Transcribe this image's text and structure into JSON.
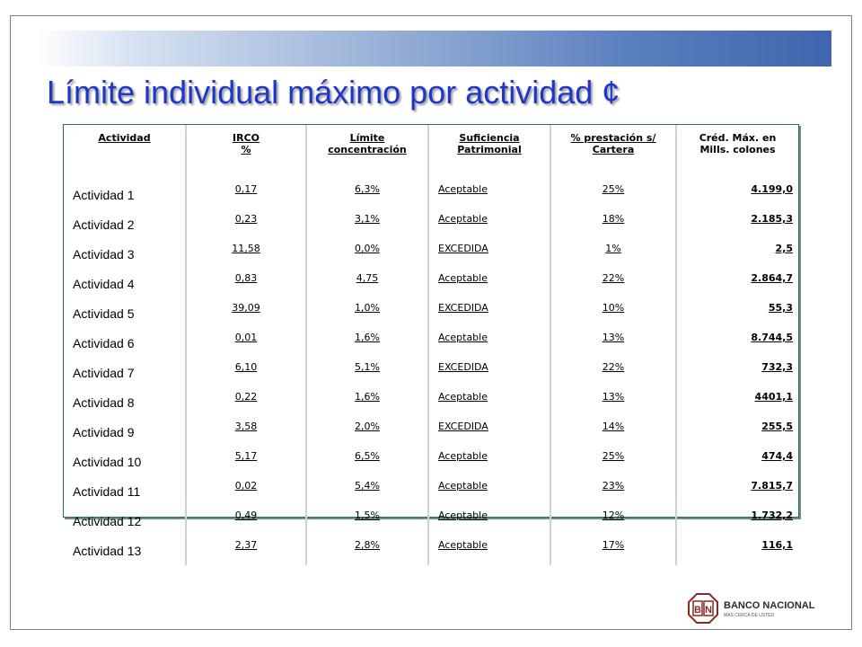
{
  "slide": {
    "title": "Límite individual máximo por actividad ¢"
  },
  "table": {
    "headers": [
      {
        "line1": "Actividad",
        "line2": ""
      },
      {
        "line1": "IRCO",
        "line2": "%"
      },
      {
        "line1": "Límite",
        "line2": "concentración"
      },
      {
        "line1": "Suficiencia",
        "line2": "Patrimonial"
      },
      {
        "line1": "% prestación s/",
        "line2": "Cartera"
      },
      {
        "line1": "Créd. Máx. en",
        "line2": "Mills. colones"
      }
    ],
    "rows": [
      {
        "actividad": "Actividad 1",
        "irco": "0,17",
        "limite": "6,3%",
        "suficiencia": "Aceptable",
        "prestacion": "25%",
        "cred": "4.199,0"
      },
      {
        "actividad": "Actividad 2",
        "irco": "0,23",
        "limite": "3,1%",
        "suficiencia": "Aceptable",
        "prestacion": "18%",
        "cred": "2.185,3"
      },
      {
        "actividad": "Actividad 3",
        "irco": "11,58",
        "limite": "0,0%",
        "suficiencia": "EXCEDIDA",
        "prestacion": "1%",
        "cred": "2,5"
      },
      {
        "actividad": "Actividad 4",
        "irco": "0,83",
        "limite": "4,75",
        "suficiencia": "Aceptable",
        "prestacion": "22%",
        "cred": "2.864,7"
      },
      {
        "actividad": "Actividad 5",
        "irco": "39,09",
        "limite": "1,0%",
        "suficiencia": "EXCEDIDA",
        "prestacion": "10%",
        "cred": "55,3"
      },
      {
        "actividad": "Actividad 6",
        "irco": "0,01",
        "limite": "1,6%",
        "suficiencia": "Aceptable",
        "prestacion": "13%",
        "cred": "8.744,5"
      },
      {
        "actividad": "Actividad 7",
        "irco": "6,10",
        "limite": "5,1%",
        "suficiencia": "EXCEDIDA",
        "prestacion": "22%",
        "cred": "732,3"
      },
      {
        "actividad": "Actividad 8",
        "irco": "0,22",
        "limite": "1,6%",
        "suficiencia": "Aceptable",
        "prestacion": "13%",
        "cred": "4401,1"
      },
      {
        "actividad": "Actividad 9",
        "irco": "3,58",
        "limite": "2,0%",
        "suficiencia": "EXCEDIDA",
        "prestacion": "14%",
        "cred": "255,5"
      },
      {
        "actividad": "Actividad 10",
        "irco": "5,17",
        "limite": "6,5%",
        "suficiencia": "Aceptable",
        "prestacion": "25%",
        "cred": "474,4"
      },
      {
        "actividad": "Actividad 11",
        "irco": "0,02",
        "limite": "5,4%",
        "suficiencia": "Aceptable",
        "prestacion": "23%",
        "cred": "7.815,7"
      },
      {
        "actividad": "Actividad 12",
        "irco": "0,49",
        "limite": "1,5%",
        "suficiencia": "Aceptable",
        "prestacion": "12%",
        "cred": "1.732,2"
      },
      {
        "actividad": "Actividad 13",
        "irco": "2,37",
        "limite": "2,8%",
        "suficiencia": "Aceptable",
        "prestacion": "17%",
        "cred": "116,1"
      }
    ]
  },
  "logo": {
    "emblem_letters": [
      "B",
      "N"
    ],
    "name": "BANCO NACIONAL",
    "tagline": "MÁS CERCA DE USTED",
    "color": "#8b2a25"
  },
  "colors": {
    "title": "#1f37c8",
    "table_border": "#2a6b5a",
    "band_end": "#3f66ad"
  }
}
